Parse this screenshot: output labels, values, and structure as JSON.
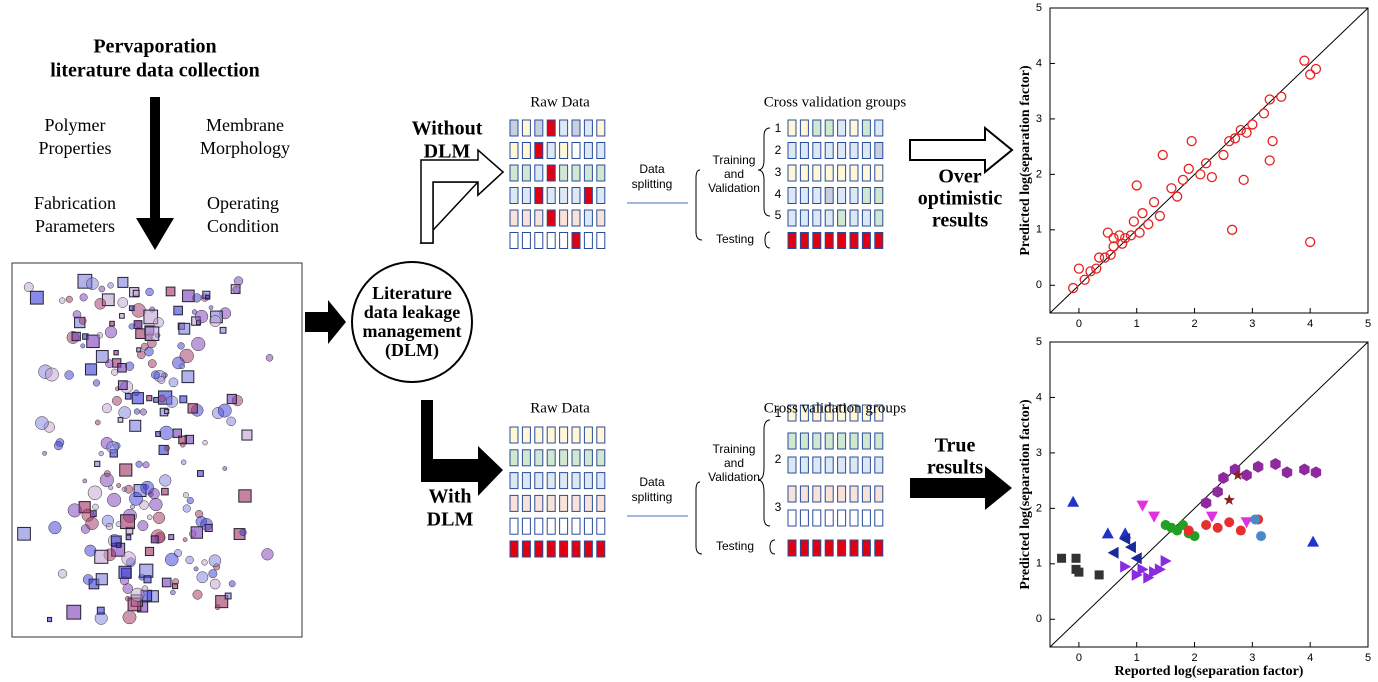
{
  "left": {
    "title_lines": [
      "Pervaporation",
      "literature data collection"
    ],
    "factors": [
      [
        "Polymer",
        "Properties"
      ],
      [
        "Membrane",
        "Morphology"
      ],
      [
        "Fabrication",
        "Parameters"
      ],
      [
        "Operating",
        "Condition"
      ]
    ]
  },
  "dlm": {
    "lines": [
      "Literature",
      "data leakage",
      "management",
      "(DLM)"
    ]
  },
  "without": {
    "label_lines": [
      "Without",
      "DLM"
    ],
    "raw_title": "Raw Data",
    "split_lines": [
      "Data",
      "splitting"
    ],
    "cv_title": "Cross validation groups",
    "train_lines": [
      "Training",
      "and",
      "Validation"
    ],
    "testing": "Testing",
    "groups": [
      1,
      2,
      3,
      4,
      5
    ],
    "result_lines": [
      "Over",
      "optimistic",
      "results"
    ]
  },
  "with": {
    "label_lines": [
      "With",
      "DLM"
    ],
    "raw_title": "Raw Data",
    "split_lines": [
      "Data",
      "splitting"
    ],
    "cv_title": "Cross validation groups",
    "train_lines": [
      "Training",
      "and",
      "Validation"
    ],
    "testing": "Testing",
    "groups": [
      1,
      2,
      3
    ],
    "result_lines": [
      "True",
      "results"
    ]
  },
  "plots": [
    {
      "ylabel": "Predicted log(separation factor)",
      "xlim": [
        -0.5,
        5
      ],
      "ylim": [
        -0.5,
        5
      ],
      "xticks": [
        0,
        1,
        2,
        3,
        4,
        5
      ],
      "yticks": [
        0,
        1,
        2,
        3,
        4,
        5
      ],
      "series": [
        {
          "color": "#e82020",
          "marker": "open-circle",
          "x": [
            -0.1,
            0,
            0.1,
            0.2,
            0.3,
            0.35,
            0.45,
            0.5,
            0.55,
            0.6,
            0.7,
            0.75,
            0.8,
            0.9,
            0.95,
            1.0,
            1.05,
            1.1,
            1.2,
            1.3,
            1.4,
            1.45,
            1.6,
            1.7,
            1.9,
            1.95,
            2.1,
            2.2,
            2.3,
            2.5,
            2.6,
            2.65,
            2.8,
            2.85,
            2.9,
            3.0,
            3.2,
            3.3,
            3.3,
            3.35,
            3.5,
            3.9,
            4.0,
            4.1,
            4.0,
            2.7,
            1.8,
            0.6
          ],
          "y": [
            -0.05,
            0.3,
            0.1,
            0.25,
            0.3,
            0.5,
            0.5,
            0.95,
            0.55,
            0.7,
            0.9,
            0.75,
            0.85,
            0.9,
            1.15,
            1.8,
            0.95,
            1.3,
            1.1,
            1.5,
            1.25,
            2.35,
            1.75,
            1.6,
            2.1,
            2.6,
            2.0,
            2.2,
            1.95,
            2.35,
            2.6,
            1.0,
            2.8,
            1.9,
            2.75,
            2.9,
            3.1,
            3.35,
            2.25,
            2.6,
            3.4,
            4.05,
            3.8,
            3.9,
            0.78,
            2.65,
            1.9,
            0.85
          ]
        }
      ]
    },
    {
      "ylabel": "Predicted log(separation factor)",
      "xlabel": "Reported log(separation factor)",
      "xlim": [
        -0.5,
        5
      ],
      "ylim": [
        -0.5,
        5
      ],
      "xticks": [
        0,
        1,
        2,
        3,
        4,
        5
      ],
      "yticks": [
        0,
        1,
        2,
        3,
        4,
        5
      ],
      "series": [
        {
          "color": "#333333",
          "marker": "square",
          "x": [
            -0.3,
            -0.05,
            -0.05,
            0,
            0.35
          ],
          "y": [
            1.1,
            1.1,
            0.9,
            0.85,
            0.8
          ]
        },
        {
          "color": "#2233cc",
          "marker": "triangle-up",
          "x": [
            -0.1,
            0.5,
            0.8,
            4.05
          ],
          "y": [
            2.12,
            1.55,
            1.55,
            1.4
          ]
        },
        {
          "color": "#1a2a9a",
          "marker": "triangle-left",
          "x": [
            0.6,
            0.8,
            0.9,
            1.0
          ],
          "y": [
            1.2,
            1.45,
            1.3,
            1.1
          ]
        },
        {
          "color": "#8a2be2",
          "marker": "triangle-right",
          "x": [
            0.8,
            1.0,
            1.1,
            1.2,
            1.3,
            1.4,
            1.5
          ],
          "y": [
            0.95,
            0.8,
            0.9,
            0.75,
            0.85,
            0.9,
            1.05
          ]
        },
        {
          "color": "#22a022",
          "marker": "circle",
          "x": [
            1.5,
            1.6,
            1.7,
            1.8,
            1.9,
            2.0
          ],
          "y": [
            1.7,
            1.65,
            1.6,
            1.7,
            1.55,
            1.5
          ]
        },
        {
          "color": "#e53030",
          "marker": "circle",
          "x": [
            1.9,
            2.2,
            2.4,
            2.6,
            2.8,
            3.1
          ],
          "y": [
            1.6,
            1.7,
            1.65,
            1.75,
            1.6,
            1.8
          ]
        },
        {
          "color": "#8e2a9e",
          "marker": "hexagon",
          "x": [
            2.2,
            2.4,
            2.5,
            2.7,
            2.9,
            3.1,
            3.4,
            3.6,
            3.9,
            4.1
          ],
          "y": [
            2.1,
            2.3,
            2.55,
            2.7,
            2.6,
            2.75,
            2.8,
            2.65,
            2.7,
            2.65
          ]
        },
        {
          "color": "#e030e0",
          "marker": "triangle-down",
          "x": [
            1.1,
            1.3,
            2.3,
            2.9
          ],
          "y": [
            2.05,
            1.85,
            1.85,
            1.75
          ]
        },
        {
          "color": "#4a8ac8",
          "marker": "circle",
          "x": [
            3.05,
            3.15
          ],
          "y": [
            1.8,
            1.5
          ]
        },
        {
          "color": "#8b2020",
          "marker": "star",
          "x": [
            2.75,
            2.6
          ],
          "y": [
            2.6,
            2.15
          ]
        }
      ]
    }
  ]
}
